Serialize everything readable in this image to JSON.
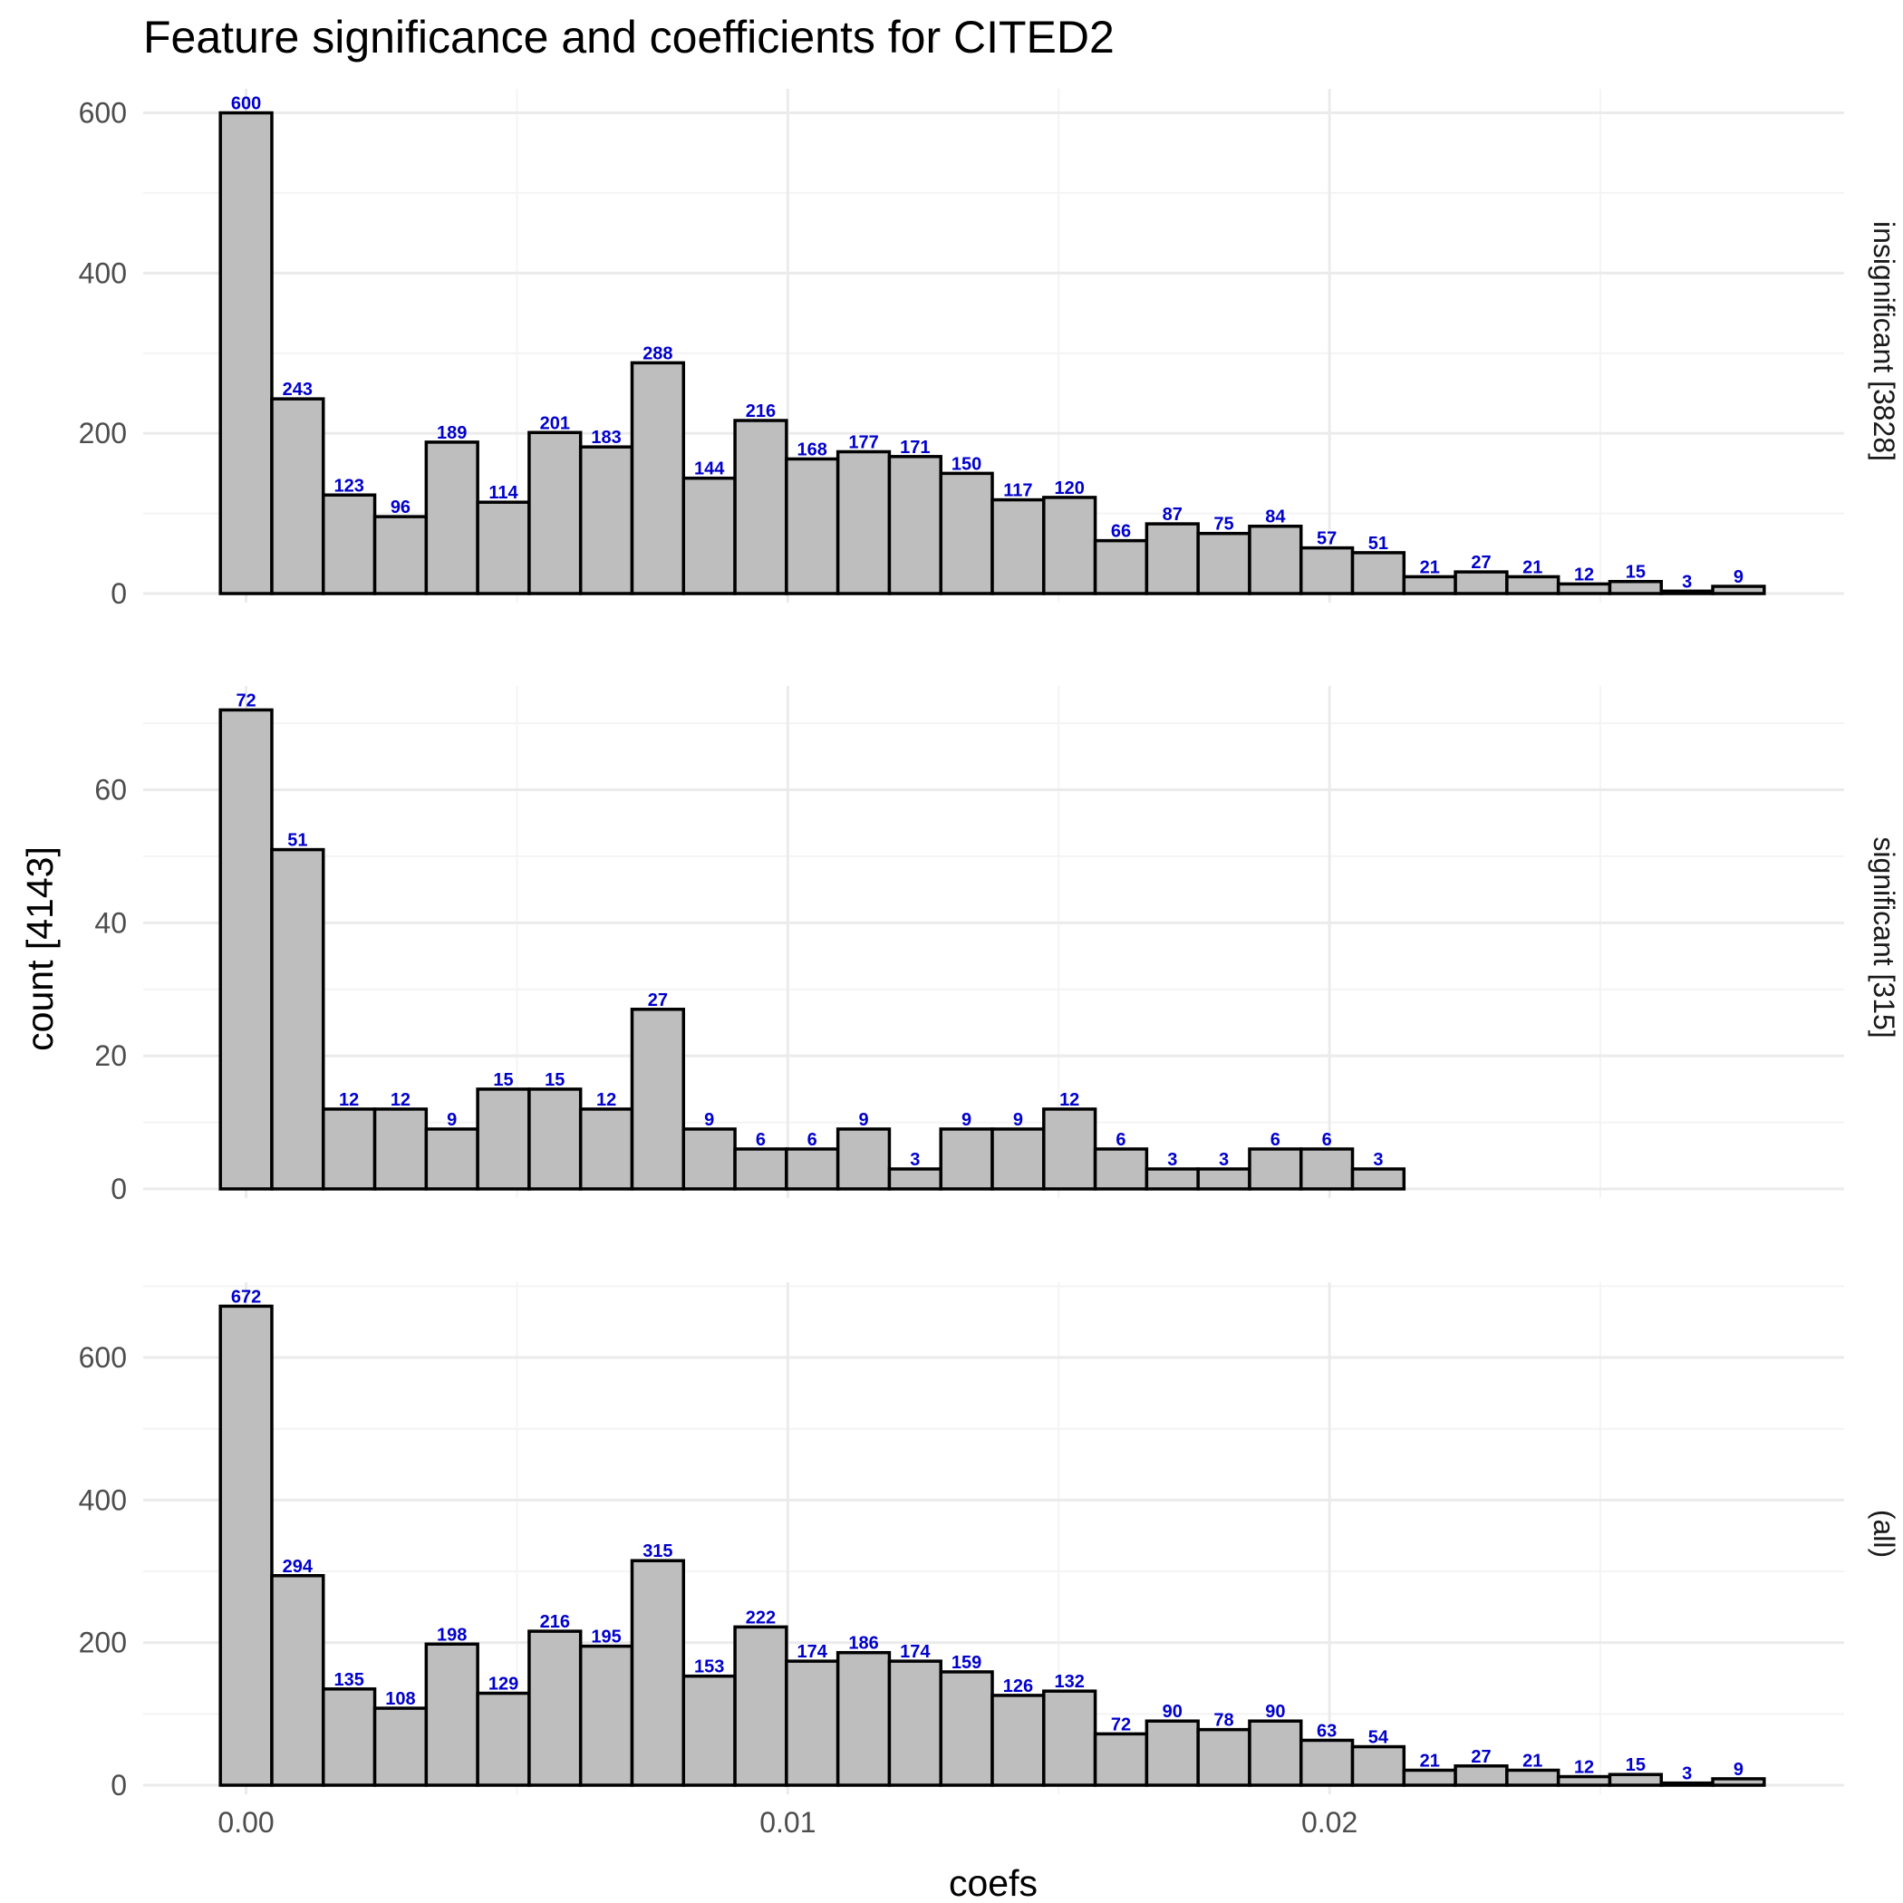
{
  "title": "Feature significance and coefficients for CITED2",
  "chart_data": {
    "type": "bar",
    "subtype": "histogram-faceted",
    "title": "Feature significance and coefficients for CITED2",
    "xlabel": "coefs",
    "ylabel": "count [4143]",
    "bin_width": 0.00095,
    "bins": 30,
    "x_first_bin_center": 0.0,
    "xlim": [
      -0.0019,
      0.0295
    ],
    "x_ticks": [
      0.0,
      0.01,
      0.02
    ],
    "x_tick_labels": [
      "0.00",
      "0.01",
      "0.02"
    ],
    "grid": true,
    "bar_fill": "#bebebe",
    "bar_outline": "#000000",
    "label_color": "#0000cc",
    "facets": [
      {
        "label": "insignificant [3828]",
        "ylim": [
          0,
          630
        ],
        "y_ticks": [
          0,
          200,
          400,
          600
        ],
        "values": [
          600,
          243,
          123,
          96,
          189,
          114,
          201,
          183,
          288,
          144,
          216,
          168,
          177,
          171,
          150,
          117,
          120,
          66,
          87,
          75,
          84,
          57,
          51,
          21,
          27,
          21,
          12,
          15,
          3,
          9
        ]
      },
      {
        "label": "significant [315]",
        "ylim": [
          0,
          75.6
        ],
        "y_ticks": [
          0,
          20,
          40,
          60
        ],
        "values": [
          72,
          51,
          12,
          12,
          9,
          15,
          15,
          12,
          27,
          9,
          6,
          6,
          9,
          3,
          9,
          9,
          12,
          6,
          3,
          3,
          6,
          6,
          3,
          0,
          0,
          0,
          0,
          0,
          0,
          0
        ]
      },
      {
        "label": "(all)",
        "ylim": [
          0,
          705.6
        ],
        "y_ticks": [
          0,
          200,
          400,
          600
        ],
        "values": [
          672,
          294,
          135,
          108,
          198,
          129,
          216,
          195,
          315,
          153,
          222,
          174,
          186,
          174,
          159,
          126,
          132,
          72,
          90,
          78,
          90,
          63,
          54,
          21,
          27,
          21,
          12,
          15,
          3,
          9
        ]
      }
    ]
  }
}
